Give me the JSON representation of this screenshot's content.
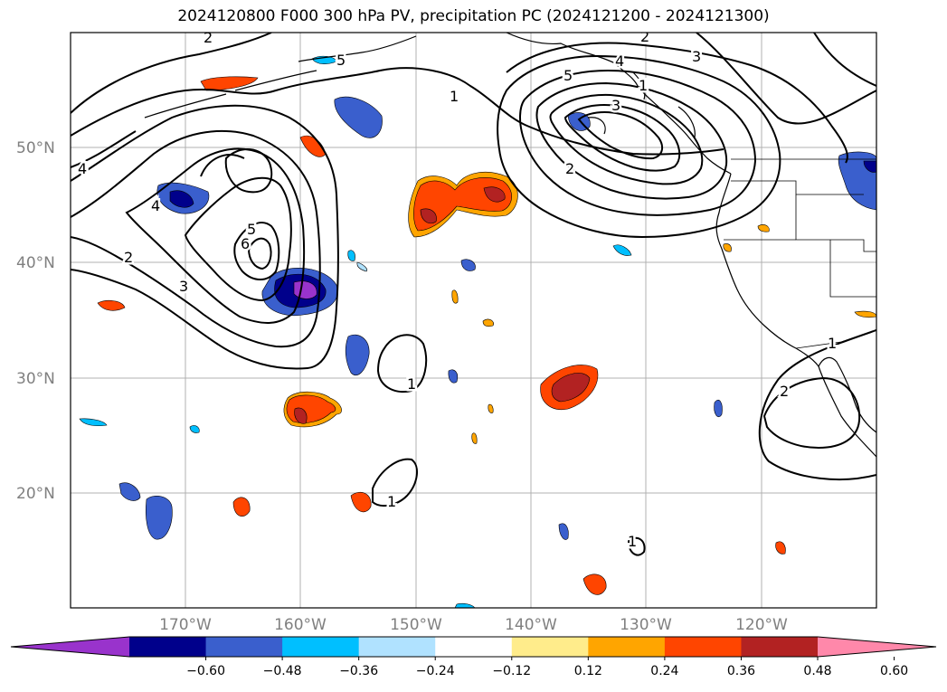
{
  "title": "2024120800 F000 300 hPa PV, precipitation PC (2024121200 - 2024121300)",
  "lat_labels": [
    "50°N",
    "40°N",
    "30°N",
    "20°N"
  ],
  "lon_labels": [
    "170°W",
    "160°W",
    "150°W",
    "140°W",
    "130°W",
    "120°W"
  ],
  "colorbar": {
    "ticks": [
      "−0.60",
      "−0.48",
      "−0.36",
      "−0.24",
      "−0.12",
      "0.12",
      "0.24",
      "0.36",
      "0.48",
      "0.60"
    ],
    "colors": [
      "#9933cc",
      "#00008b",
      "#3a5fcd",
      "#00bfff",
      "#b0e2ff",
      "#ffffff",
      "#ffec8b",
      "#ffa500",
      "#ff4500",
      "#b22222",
      "#ff88aa"
    ]
  },
  "contour_labels": [
    "2",
    "4",
    "2",
    "3",
    "5",
    "6",
    "4",
    "5",
    "3",
    "1",
    "1",
    "2",
    "4",
    "3",
    "5",
    "2",
    "1",
    "2",
    "1",
    "1",
    "1"
  ],
  "colors": {
    "frame": "#000000",
    "grid": "#b0b0b0",
    "contour": "#000000",
    "coast": "#000000"
  }
}
